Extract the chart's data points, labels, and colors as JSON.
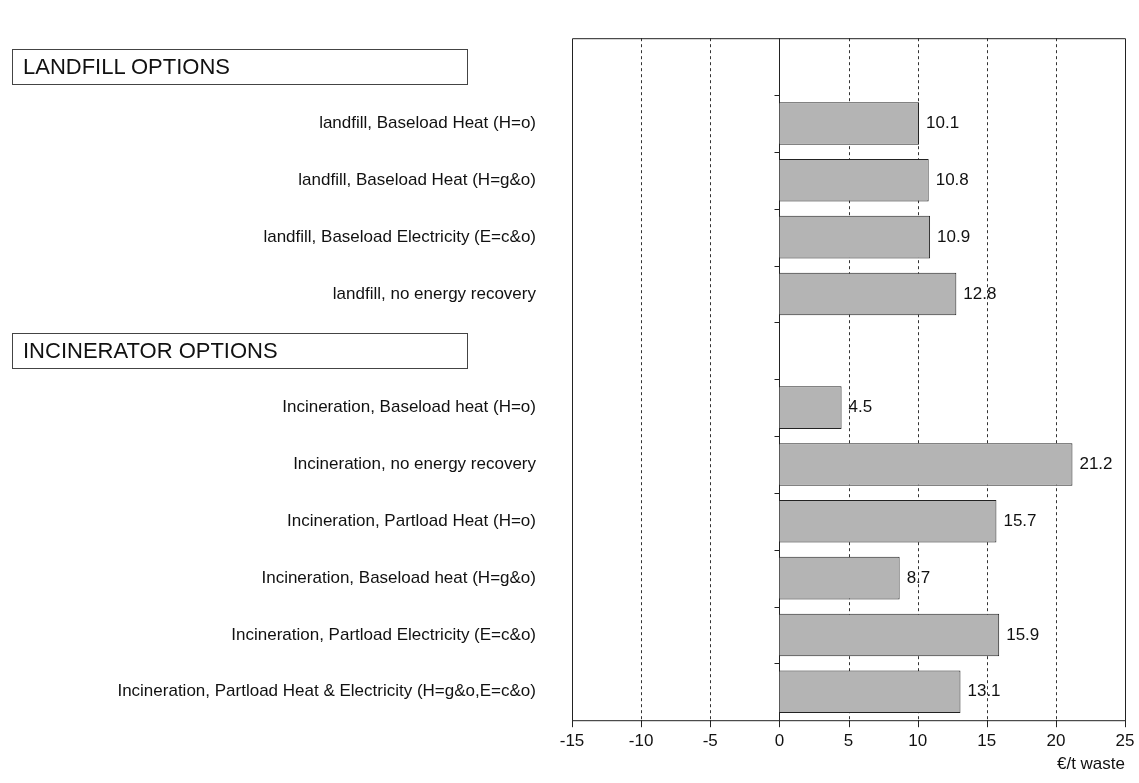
{
  "chart_data": {
    "type": "bar",
    "orientation": "horizontal",
    "xlabel": "€/t waste",
    "categories": [
      null,
      "landfill, Baseload Heat (H=o)",
      "landfill, Baseload Heat (H=g&o)",
      "landfill, Baseload Electricity (E=c&o)",
      "landfill, no energy recovery",
      null,
      "Incineration, Baseload heat (H=o)",
      "Incineration, no energy recovery",
      "Incineration, Partload Heat (H=o)",
      "Incineration, Baseload heat (H=g&o)",
      "Incineration, Partload Electricity (E=c&o)",
      "Incineration, Partload Heat & Electricity (H=g&o,E=c&o)"
    ],
    "values": [
      null,
      10.1,
      10.8,
      10.9,
      12.8,
      null,
      4.5,
      21.2,
      15.7,
      8.7,
      15.9,
      13.1
    ],
    "color": "#b4b4b4",
    "xlim": [
      -15,
      25
    ],
    "xticks": [
      -15,
      -10,
      -5,
      0,
      5,
      10,
      15,
      20,
      25
    ],
    "grid": "x",
    "data_labels": true,
    "annotations": [
      "LANDFILL OPTIONS",
      "INCINERATOR OPTIONS"
    ]
  }
}
